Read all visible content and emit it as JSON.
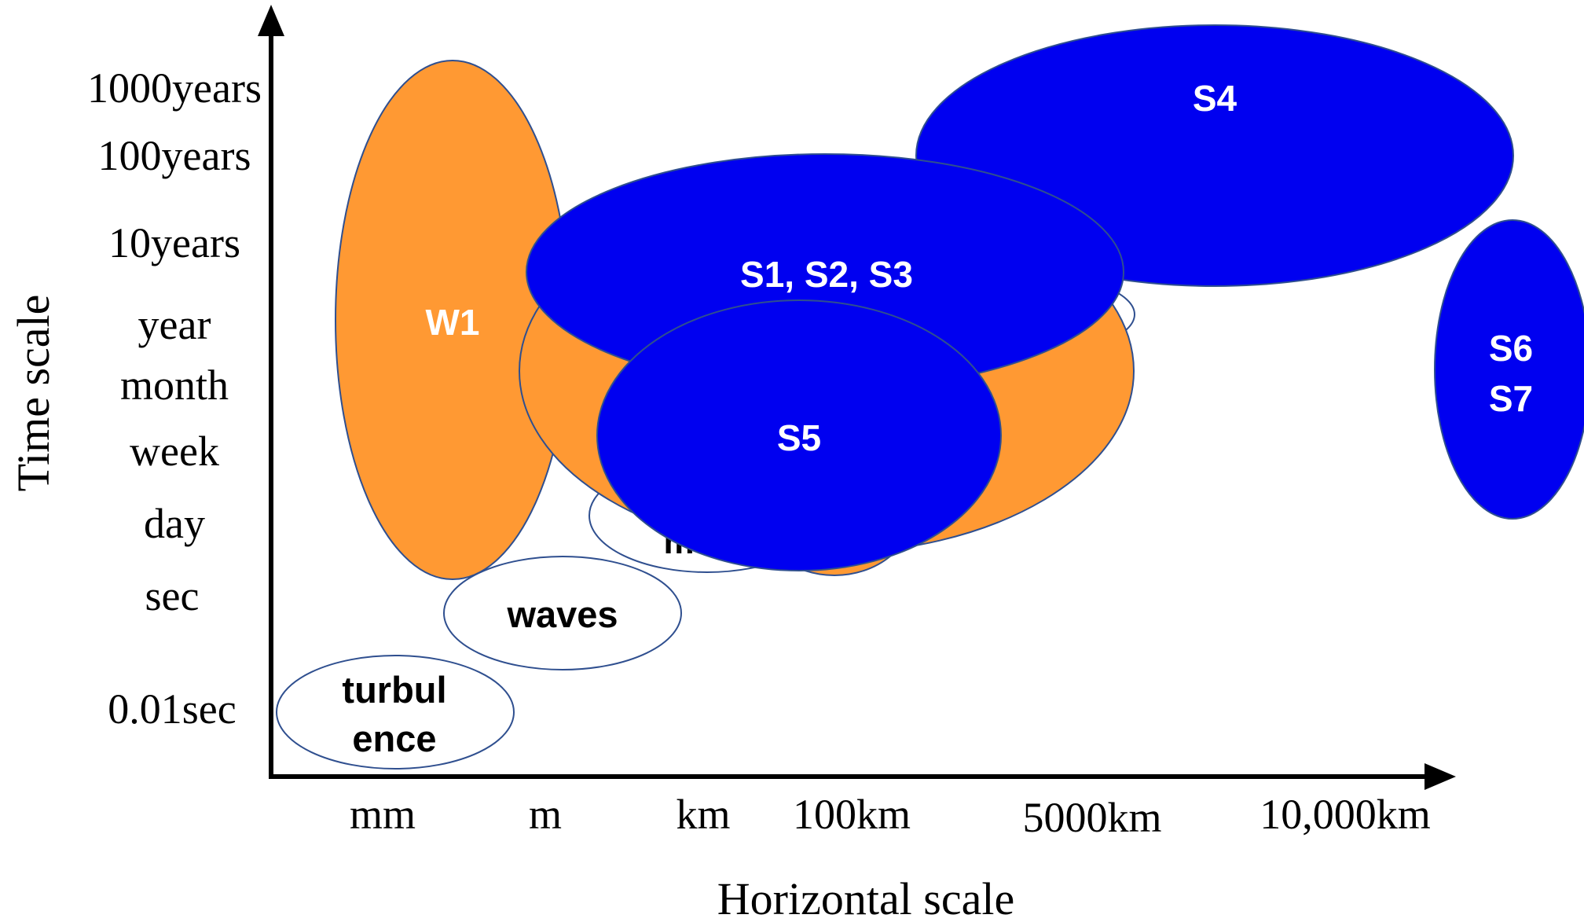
{
  "axes": {
    "y_title": "Time scale",
    "x_title": "Horizontal scale",
    "y_ticks": [
      "1000years",
      "100years",
      "10years",
      "year",
      "month",
      "week",
      "day",
      "sec",
      "0.01sec"
    ],
    "x_ticks": [
      "mm",
      "m",
      "km",
      "100km",
      "5000km",
      "10,000km"
    ]
  },
  "colors": {
    "orange": "#FF9933",
    "blue": "#0000F0",
    "outline": "#2F4F8F",
    "axis": "#000000"
  },
  "regions": {
    "turbulence": {
      "line1": "turbul",
      "line2": "ence"
    },
    "waves": {
      "label": "waves"
    },
    "hidden_label": "m",
    "w1": {
      "label": "W1"
    },
    "s123": {
      "label": "S1, S2, S3"
    },
    "s4": {
      "label": "S4"
    },
    "s5": {
      "label": "S5"
    },
    "s67": {
      "line1": "S6",
      "line2": "S7"
    }
  }
}
